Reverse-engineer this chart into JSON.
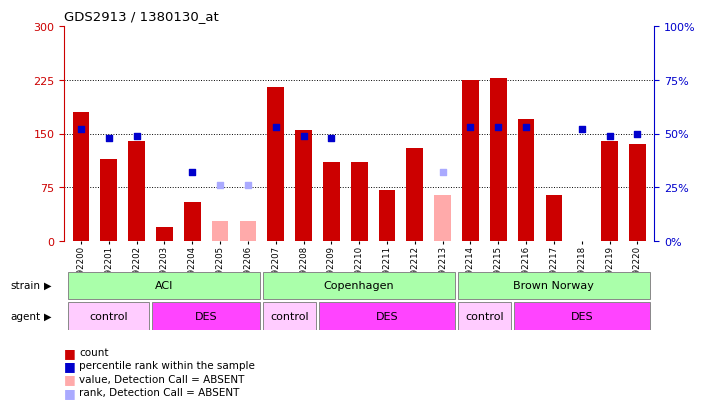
{
  "title": "GDS2913 / 1380130_at",
  "samples": [
    "GSM92200",
    "GSM92201",
    "GSM92202",
    "GSM92203",
    "GSM92204",
    "GSM92205",
    "GSM92206",
    "GSM92207",
    "GSM92208",
    "GSM92209",
    "GSM92210",
    "GSM92211",
    "GSM92212",
    "GSM92213",
    "GSM92214",
    "GSM92215",
    "GSM92216",
    "GSM92217",
    "GSM92218",
    "GSM92219",
    "GSM92220"
  ],
  "count_values": [
    180,
    115,
    140,
    20,
    55,
    null,
    null,
    215,
    155,
    110,
    110,
    72,
    130,
    null,
    225,
    228,
    170,
    65,
    null,
    140,
    135
  ],
  "count_absent": [
    null,
    null,
    null,
    null,
    null,
    28,
    28,
    null,
    null,
    null,
    null,
    null,
    null,
    65,
    null,
    null,
    null,
    null,
    null,
    null,
    null
  ],
  "percentile_values": [
    52,
    48,
    49,
    null,
    32,
    null,
    null,
    53,
    49,
    48,
    null,
    null,
    null,
    null,
    53,
    53,
    53,
    null,
    52,
    49,
    50
  ],
  "percentile_absent": [
    null,
    null,
    null,
    null,
    null,
    26,
    26,
    null,
    null,
    null,
    null,
    null,
    null,
    32,
    null,
    null,
    null,
    null,
    null,
    null,
    null
  ],
  "ylim_left": [
    0,
    300
  ],
  "ylim_right": [
    0,
    100
  ],
  "yticks_left": [
    0,
    75,
    150,
    225,
    300
  ],
  "yticks_right": [
    0,
    25,
    50,
    75,
    100
  ],
  "strain_groups": [
    {
      "label": "ACI",
      "start": 0,
      "end": 6,
      "color": "#aaffaa"
    },
    {
      "label": "Copenhagen",
      "start": 7,
      "end": 13,
      "color": "#aaffaa"
    },
    {
      "label": "Brown Norway",
      "start": 14,
      "end": 20,
      "color": "#aaffaa"
    }
  ],
  "agent_groups": [
    {
      "label": "control",
      "start": 0,
      "end": 2,
      "color": "#ffccff"
    },
    {
      "label": "DES",
      "start": 3,
      "end": 6,
      "color": "#ff44ff"
    },
    {
      "label": "control",
      "start": 7,
      "end": 8,
      "color": "#ffccff"
    },
    {
      "label": "DES",
      "start": 9,
      "end": 13,
      "color": "#ff44ff"
    },
    {
      "label": "control",
      "start": 14,
      "end": 15,
      "color": "#ffccff"
    },
    {
      "label": "DES",
      "start": 16,
      "end": 20,
      "color": "#ff44ff"
    }
  ],
  "bar_color": "#cc0000",
  "bar_absent_color": "#ffaaaa",
  "dot_color": "#0000cc",
  "dot_absent_color": "#aaaaff",
  "bar_width": 0.6,
  "bg_color": "#ffffff",
  "axis_color_left": "#cc0000",
  "axis_color_right": "#0000cc"
}
